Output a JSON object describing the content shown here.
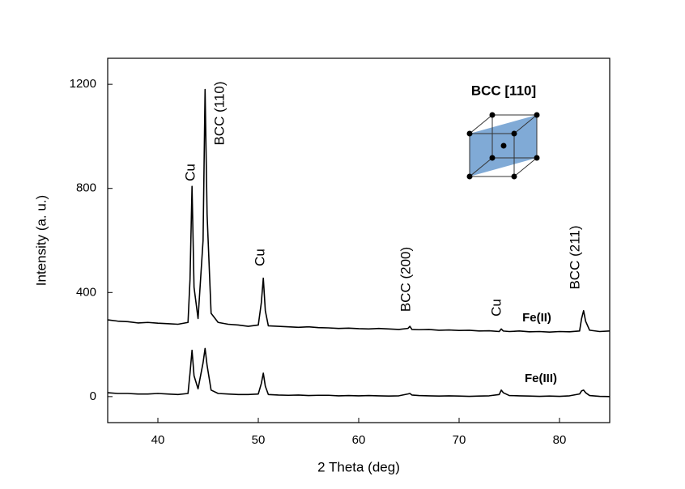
{
  "chart_data": {
    "type": "line",
    "xlabel": "2 Theta (deg)",
    "ylabel": "Intensity (a. u.)",
    "xlim": [
      35,
      85
    ],
    "xticks": [
      40,
      50,
      60,
      70,
      80
    ],
    "ylim": [
      -100,
      1300
    ],
    "yticks": [
      0,
      400,
      800,
      1200
    ],
    "x": [
      35,
      36,
      37,
      38,
      39,
      40,
      41,
      42,
      43,
      43.2,
      43.4,
      43.6,
      44,
      44.5,
      44.7,
      44.9,
      45.3,
      46,
      47,
      48,
      49,
      50,
      50.3,
      50.5,
      50.7,
      51,
      52,
      53,
      54,
      55,
      56,
      57,
      58,
      59,
      60,
      61,
      62,
      63,
      64,
      64.9,
      65.1,
      65.3,
      66,
      67,
      68,
      69,
      70,
      71,
      72,
      73,
      74,
      74.2,
      74.4,
      75,
      76,
      77,
      78,
      79,
      80,
      81,
      82,
      82.2,
      82.4,
      82.6,
      83,
      84,
      85
    ],
    "series": [
      {
        "name": "Fe(II)",
        "color": "#000000",
        "values": [
          295,
          290,
          288,
          283,
          285,
          282,
          280,
          278,
          285,
          450,
          808,
          420,
          300,
          600,
          1180,
          700,
          320,
          285,
          278,
          275,
          270,
          275,
          360,
          455,
          330,
          272,
          270,
          268,
          266,
          268,
          265,
          264,
          262,
          263,
          261,
          260,
          262,
          260,
          258,
          262,
          270,
          258,
          257,
          258,
          255,
          256,
          254,
          255,
          252,
          253,
          250,
          260,
          252,
          250,
          252,
          249,
          250,
          248,
          250,
          249,
          252,
          300,
          330,
          290,
          255,
          250,
          252
        ]
      },
      {
        "name": "Fe(III)",
        "color": "#000000",
        "values": [
          15,
          12,
          12,
          10,
          10,
          12,
          10,
          8,
          12,
          90,
          178,
          80,
          30,
          130,
          185,
          120,
          25,
          12,
          10,
          8,
          8,
          10,
          50,
          90,
          40,
          8,
          6,
          5,
          6,
          4,
          5,
          5,
          3,
          4,
          3,
          4,
          3,
          2,
          3,
          10,
          12,
          6,
          4,
          3,
          2,
          3,
          2,
          1,
          2,
          3,
          8,
          25,
          15,
          4,
          3,
          2,
          1,
          2,
          1,
          3,
          10,
          22,
          25,
          15,
          4,
          1,
          0
        ]
      }
    ],
    "annotations": [
      {
        "text": "Cu",
        "color": "#e41a1c"
      },
      {
        "text": "BCC (110)",
        "color": "#1a8a1a"
      },
      {
        "text": "Cu",
        "color": "#e41a1c"
      },
      {
        "text": "BCC (200)",
        "color": "#1a8a1a"
      },
      {
        "text": "Cu",
        "color": "#e41a1c"
      },
      {
        "text": "BCC (211)",
        "color": "#1a8a1a"
      }
    ],
    "inset_title": {
      "text": "BCC [110]",
      "color": "#7fa8cf"
    }
  }
}
